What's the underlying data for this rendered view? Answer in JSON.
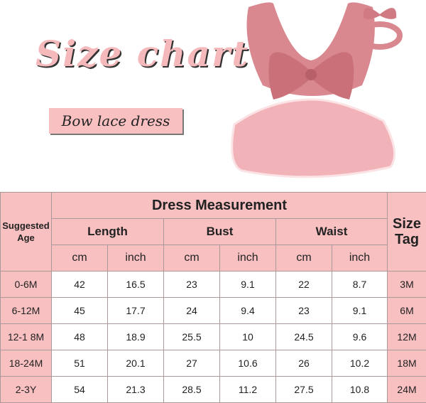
{
  "title": "Size chart",
  "subtitle": "Bow lace dress",
  "table": {
    "heading": "Dress Measurement",
    "age_header": "Suggested Age",
    "size_header": "Size Tag",
    "groups": [
      "Length",
      "Bust",
      "Waist"
    ],
    "units": [
      "cm",
      "inch",
      "cm",
      "inch",
      "cm",
      "inch"
    ],
    "rows": [
      {
        "age": "0-6M",
        "values": [
          "42",
          "16.5",
          "23",
          "9.1",
          "22",
          "8.7"
        ],
        "size": "3M"
      },
      {
        "age": "6-12M",
        "values": [
          "45",
          "17.7",
          "24",
          "9.4",
          "23",
          "9.1"
        ],
        "size": "6M"
      },
      {
        "age": "12-1 8M",
        "values": [
          "48",
          "18.9",
          "25.5",
          "10",
          "24.5",
          "9.6"
        ],
        "size": "12M"
      },
      {
        "age": "18-24M",
        "values": [
          "51",
          "20.1",
          "27",
          "10.6",
          "26",
          "10.2"
        ],
        "size": "18M"
      },
      {
        "age": "2-3Y",
        "values": [
          "54",
          "21.3",
          "28.5",
          "11.2",
          "27.5",
          "10.8"
        ],
        "size": "24M"
      }
    ]
  },
  "colors": {
    "pink": "#f9c0c2",
    "dress": "#d9848c"
  }
}
